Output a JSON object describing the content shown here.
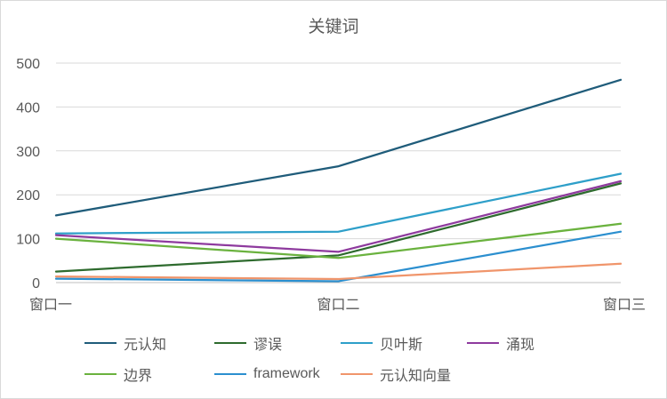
{
  "chart_data": {
    "type": "line",
    "title": "关键词",
    "categories": [
      "窗口一",
      "窗口二",
      "窗口三"
    ],
    "ylim": [
      0,
      500
    ],
    "yticks": [
      0,
      100,
      200,
      300,
      400,
      500
    ],
    "grid": true,
    "legend_position": "bottom",
    "series": [
      {
        "name": "元认知",
        "color": "#1f5c7a",
        "values": [
          153,
          265,
          462
        ]
      },
      {
        "name": "谬误",
        "color": "#2e6b2e",
        "values": [
          25,
          62,
          226
        ]
      },
      {
        "name": "贝叶斯",
        "color": "#2e9fc9",
        "values": [
          112,
          116,
          248
        ]
      },
      {
        "name": "涌现",
        "color": "#8e3a9e",
        "values": [
          108,
          70,
          231
        ]
      },
      {
        "name": "边界",
        "color": "#6ab23e",
        "values": [
          100,
          56,
          134
        ]
      },
      {
        "name": "framework",
        "color": "#2b8fcf",
        "values": [
          9,
          3,
          116
        ]
      },
      {
        "name": "元认知向量",
        "color": "#f0956b",
        "values": [
          14,
          8,
          43
        ]
      }
    ]
  }
}
